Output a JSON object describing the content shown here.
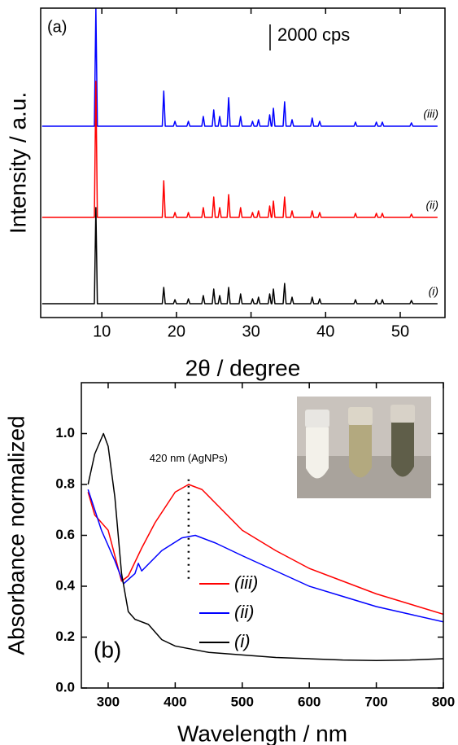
{
  "chart_data": [
    {
      "type": "line",
      "panel_label": "(a)",
      "x_label": "2θ / degree",
      "y_label": "Intensity / a.u.",
      "xlim": [
        1.8,
        56
      ],
      "xticks": [
        10,
        20,
        30,
        40,
        50
      ],
      "ylim": [
        0,
        23750
      ],
      "scale_bar": {
        "value": 2000,
        "label": "2000 cps"
      },
      "x": [
        2,
        9.0,
        9.2,
        9.4,
        18.1,
        18.3,
        18.5,
        19.6,
        19.8,
        20.0,
        21.4,
        21.6,
        21.8,
        23.4,
        23.6,
        23.8,
        24.8,
        25.0,
        25.2,
        25.6,
        25.8,
        26.0,
        26.8,
        27.0,
        27.2,
        28.4,
        28.6,
        28.8,
        30.0,
        30.2,
        30.4,
        30.8,
        31.0,
        31.2,
        32.3,
        32.5,
        32.7,
        32.8,
        33.0,
        33.2,
        34.3,
        34.5,
        34.7,
        35.3,
        35.5,
        35.7,
        38.0,
        38.2,
        38.4,
        39.0,
        39.2,
        39.4,
        43.8,
        44.0,
        44.2,
        46.6,
        46.8,
        47.0,
        47.4,
        47.6,
        47.8,
        51.3,
        51.5,
        51.7,
        55
      ],
      "series": [
        {
          "name": "(iii)",
          "color": "#0000ff",
          "values": [
            14690,
            14690,
            23750,
            14690,
            14690,
            17380,
            14690,
            14690,
            15065,
            14690,
            14690,
            15065,
            14690,
            14690,
            15440,
            14690,
            14690,
            15940,
            14690,
            14690,
            15440,
            14690,
            14690,
            16880,
            14690,
            14690,
            15440,
            14690,
            14690,
            15065,
            14690,
            14690,
            15190,
            14690,
            14690,
            15565,
            14690,
            14690,
            16065,
            14690,
            14690,
            16565,
            14690,
            14690,
            15190,
            14690,
            14690,
            15315,
            14690,
            14690,
            15065,
            14690,
            14690,
            15000,
            14690,
            14690,
            15000,
            14690,
            14690,
            15000,
            14690,
            14690,
            14940,
            14690,
            14690
          ]
        },
        {
          "name": "(ii)",
          "color": "#ff0000",
          "values": [
            7690,
            7690,
            18130,
            7690,
            7690,
            10500,
            7690,
            7690,
            8065,
            7690,
            7690,
            8065,
            7690,
            7690,
            8440,
            7690,
            7690,
            9250,
            7690,
            7690,
            8440,
            7690,
            7690,
            9440,
            7690,
            7690,
            8440,
            7690,
            7690,
            8065,
            7690,
            7690,
            8190,
            7690,
            7690,
            8565,
            7690,
            7690,
            8940,
            7690,
            7690,
            9250,
            7690,
            7690,
            8190,
            7690,
            7690,
            8190,
            7690,
            7690,
            8065,
            7690,
            7690,
            8000,
            7690,
            7690,
            8000,
            7690,
            7690,
            8000,
            7690,
            7690,
            7940,
            7690,
            7690
          ]
        },
        {
          "name": "(i)",
          "color": "#000000",
          "values": [
            1060,
            1060,
            8435,
            1060,
            1060,
            2310,
            1060,
            1060,
            1370,
            1060,
            1060,
            1435,
            1060,
            1060,
            1685,
            1060,
            1060,
            2185,
            1060,
            1060,
            1685,
            1060,
            1060,
            2310,
            1060,
            1060,
            1810,
            1060,
            1060,
            1435,
            1060,
            1060,
            1560,
            1060,
            1060,
            1810,
            1060,
            1060,
            2185,
            1060,
            1060,
            2620,
            1060,
            1060,
            1560,
            1060,
            1060,
            1560,
            1060,
            1060,
            1435,
            1060,
            1060,
            1370,
            1060,
            1060,
            1370,
            1060,
            1060,
            1370,
            1060,
            1060,
            1310,
            1060,
            1060
          ]
        }
      ]
    },
    {
      "type": "line",
      "panel_label": "(b)",
      "x_label": "Wavelength / nm",
      "y_label": "Absorbance normalized",
      "xlim": [
        260,
        800
      ],
      "xticks": [
        300,
        400,
        500,
        600,
        700,
        800
      ],
      "ylim": [
        0,
        1.2
      ],
      "yticks": [
        {
          "value": 0,
          "label": "0.0"
        },
        {
          "value": 0.2,
          "label": "0.2"
        },
        {
          "value": 0.4,
          "label": "0.4"
        },
        {
          "value": 0.6,
          "label": "0.6"
        },
        {
          "value": 0.8,
          "label": "0.8"
        },
        {
          "value": 1.0,
          "label": "1.0"
        }
      ],
      "reference_line": {
        "x": 420,
        "label": "420 nm (AgNPs)"
      },
      "series": [
        {
          "name": "(iii)",
          "color": "#ff0000",
          "x": [
            270,
            280,
            300,
            320,
            330,
            350,
            370,
            400,
            420,
            440,
            470,
            500,
            550,
            600,
            650,
            700,
            750,
            800
          ],
          "values": [
            0.77,
            0.68,
            0.62,
            0.42,
            0.44,
            0.55,
            0.65,
            0.77,
            0.8,
            0.78,
            0.7,
            0.62,
            0.54,
            0.47,
            0.42,
            0.37,
            0.33,
            0.29
          ]
        },
        {
          "name": "(ii)",
          "color": "#0000ff",
          "x": [
            270,
            290,
            310,
            323,
            340,
            345,
            350,
            380,
            410,
            430,
            460,
            500,
            550,
            600,
            650,
            700,
            750,
            800
          ],
          "values": [
            0.78,
            0.62,
            0.5,
            0.41,
            0.45,
            0.49,
            0.46,
            0.54,
            0.59,
            0.6,
            0.57,
            0.52,
            0.46,
            0.4,
            0.36,
            0.32,
            0.29,
            0.26
          ]
        },
        {
          "name": "(i)",
          "color": "#000000",
          "x": [
            270,
            280,
            293,
            300,
            310,
            320,
            330,
            340,
            360,
            380,
            400,
            450,
            500,
            550,
            600,
            650,
            700,
            750,
            800
          ],
          "values": [
            0.8,
            0.92,
            1.0,
            0.95,
            0.75,
            0.45,
            0.3,
            0.27,
            0.25,
            0.19,
            0.165,
            0.14,
            0.13,
            0.12,
            0.115,
            0.11,
            0.108,
            0.11,
            0.115
          ]
        }
      ]
    }
  ]
}
